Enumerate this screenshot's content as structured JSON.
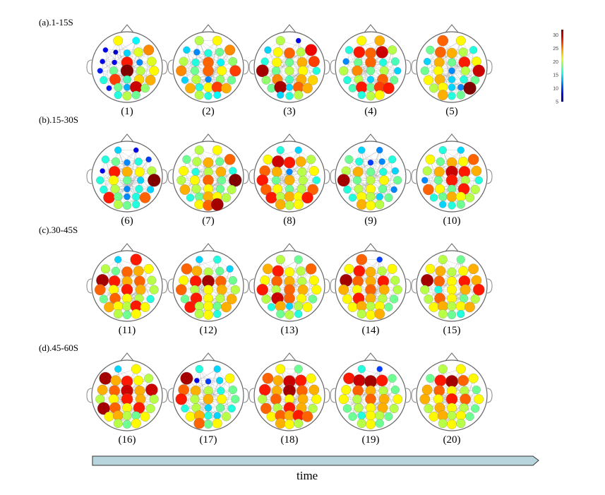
{
  "rows": [
    {
      "label": "(a).1-15S"
    },
    {
      "label": "(b).15-30S"
    },
    {
      "label": "(c).30-45S"
    },
    {
      "label": "(d).45-60S"
    }
  ],
  "panels": [
    {
      "caption": "(1)",
      "values": [
        22,
        15,
        8,
        7,
        14,
        21,
        25,
        8,
        8,
        28,
        12,
        21,
        9,
        18,
        32,
        20,
        22,
        16,
        27,
        17,
        23,
        24,
        9,
        18,
        13,
        30,
        19,
        16,
        20,
        18
      ]
    },
    {
      "caption": "(2)",
      "values": [
        20,
        22,
        14,
        12,
        16,
        18,
        25,
        20,
        16,
        26,
        15,
        19,
        25,
        18,
        26,
        22,
        27,
        14,
        20,
        12,
        19,
        18,
        24,
        16,
        22,
        27,
        24,
        20,
        16,
        15
      ]
    },
    {
      "caption": "(3)",
      "values": [
        20,
        8,
        14,
        22,
        26,
        20,
        29,
        16,
        22,
        18,
        24,
        27,
        31,
        18,
        20,
        22,
        16,
        19,
        25,
        17,
        24,
        23,
        18,
        31,
        14,
        26,
        24,
        14,
        16,
        20
      ]
    },
    {
      "caption": "(4)",
      "values": [
        22,
        24,
        16,
        28,
        26,
        30,
        20,
        12,
        18,
        26,
        16,
        17,
        20,
        25,
        18,
        20,
        14,
        16,
        20,
        14,
        26,
        18,
        17,
        28,
        18,
        27,
        28,
        16,
        20,
        22
      ]
    },
    {
      "caption": "(5)",
      "values": [
        26,
        22,
        18,
        26,
        24,
        20,
        16,
        14,
        24,
        18,
        28,
        22,
        18,
        22,
        12,
        20,
        30,
        22,
        24,
        14,
        16,
        18,
        20,
        22,
        14,
        12,
        32,
        24,
        16,
        18
      ]
    },
    {
      "caption": "(6)",
      "values": [
        14,
        8,
        16,
        18,
        12,
        16,
        10,
        8,
        28,
        24,
        22,
        20,
        16,
        22,
        18,
        14,
        32,
        16,
        20,
        12,
        16,
        14,
        28,
        18,
        12,
        16,
        26,
        20,
        18,
        16
      ]
    },
    {
      "caption": "(7)",
      "values": [
        20,
        22,
        18,
        20,
        24,
        18,
        26,
        22,
        16,
        20,
        24,
        16,
        20,
        22,
        26,
        18,
        32,
        24,
        20,
        22,
        18,
        20,
        16,
        18,
        24,
        22,
        20,
        22,
        26,
        31
      ]
    },
    {
      "caption": "(8)",
      "values": [
        16,
        14,
        22,
        30,
        28,
        24,
        20,
        26,
        24,
        12,
        20,
        22,
        28,
        18,
        24,
        20,
        16,
        26,
        22,
        18,
        20,
        26,
        28,
        20,
        24,
        22,
        28,
        24,
        20,
        22
      ]
    },
    {
      "caption": "(9)",
      "values": [
        14,
        12,
        18,
        16,
        10,
        12,
        16,
        20,
        24,
        18,
        16,
        14,
        31,
        18,
        20,
        22,
        18,
        16,
        20,
        22,
        18,
        12,
        16,
        22,
        20,
        14,
        18,
        24,
        22,
        20
      ]
    },
    {
      "caption": "(10)",
      "values": [
        16,
        14,
        22,
        18,
        24,
        22,
        26,
        20,
        24,
        30,
        28,
        24,
        12,
        18,
        28,
        20,
        16,
        26,
        22,
        18,
        28,
        20,
        16,
        18,
        24,
        22,
        20,
        14,
        16,
        18
      ]
    },
    {
      "caption": "(11)",
      "values": [
        14,
        28,
        20,
        18,
        26,
        24,
        22,
        31,
        28,
        24,
        26,
        20,
        26,
        22,
        28,
        24,
        20,
        18,
        26,
        22,
        20,
        16,
        24,
        22,
        20,
        28,
        22,
        20,
        18,
        22
      ]
    },
    {
      "caption": "(12)",
      "values": [
        14,
        16,
        26,
        24,
        20,
        18,
        14,
        22,
        28,
        31,
        26,
        18,
        26,
        20,
        22,
        24,
        20,
        18,
        28,
        22,
        20,
        24,
        28,
        20,
        22,
        18,
        24,
        20,
        22,
        16
      ]
    },
    {
      "caption": "(13)",
      "values": [
        20,
        18,
        24,
        28,
        22,
        20,
        26,
        22,
        26,
        24,
        20,
        22,
        28,
        20,
        26,
        24,
        22,
        20,
        30,
        26,
        22,
        18,
        16,
        24,
        14,
        20,
        22,
        18,
        20,
        16
      ]
    },
    {
      "caption": "(14)",
      "values": [
        26,
        10,
        22,
        28,
        24,
        20,
        22,
        31,
        26,
        24,
        28,
        20,
        24,
        22,
        26,
        24,
        20,
        22,
        28,
        24,
        20,
        18,
        22,
        24,
        20,
        22,
        18,
        20,
        22,
        24
      ]
    },
    {
      "caption": "(15)",
      "values": [
        20,
        18,
        22,
        24,
        20,
        22,
        24,
        31,
        26,
        22,
        28,
        24,
        20,
        16,
        22,
        24,
        28,
        20,
        26,
        22,
        18,
        20,
        22,
        24,
        20,
        22,
        24,
        20,
        18,
        16
      ]
    },
    {
      "caption": "(16)",
      "values": [
        14,
        22,
        31,
        24,
        28,
        22,
        20,
        24,
        26,
        30,
        24,
        30,
        20,
        22,
        28,
        24,
        20,
        31,
        26,
        22,
        28,
        20,
        22,
        24,
        20,
        18,
        22,
        20,
        18,
        22
      ]
    },
    {
      "caption": "(17)",
      "values": [
        16,
        14,
        31,
        8,
        10,
        14,
        22,
        26,
        24,
        20,
        16,
        18,
        28,
        20,
        24,
        22,
        18,
        16,
        20,
        14,
        18,
        16,
        22,
        24,
        16,
        14,
        20,
        26,
        18,
        22
      ]
    },
    {
      "caption": "(18)",
      "values": [
        22,
        18,
        26,
        24,
        30,
        28,
        22,
        28,
        24,
        31,
        26,
        24,
        20,
        26,
        22,
        24,
        22,
        26,
        20,
        28,
        24,
        20,
        22,
        26,
        24,
        28,
        26,
        24,
        22,
        20
      ]
    },
    {
      "caption": "(19)",
      "values": [
        16,
        10,
        28,
        30,
        31,
        28,
        18,
        22,
        26,
        24,
        20,
        18,
        22,
        20,
        26,
        24,
        22,
        18,
        20,
        22,
        24,
        20,
        18,
        16,
        22,
        20,
        18,
        20,
        22,
        18
      ]
    },
    {
      "caption": "(20)",
      "values": [
        20,
        22,
        18,
        28,
        31,
        26,
        22,
        24,
        26,
        22,
        20,
        18,
        24,
        22,
        28,
        26,
        22,
        20,
        24,
        22,
        20,
        18,
        22,
        24,
        20,
        22,
        18,
        20,
        22,
        20
      ]
    }
  ],
  "colorbar": {
    "colormap": "jet",
    "min": 5,
    "max": 32,
    "ticks": [
      "5",
      "10",
      "15",
      "20",
      "25",
      "30"
    ]
  },
  "arrow": {
    "label": "time",
    "color": "#b8d4dc"
  }
}
